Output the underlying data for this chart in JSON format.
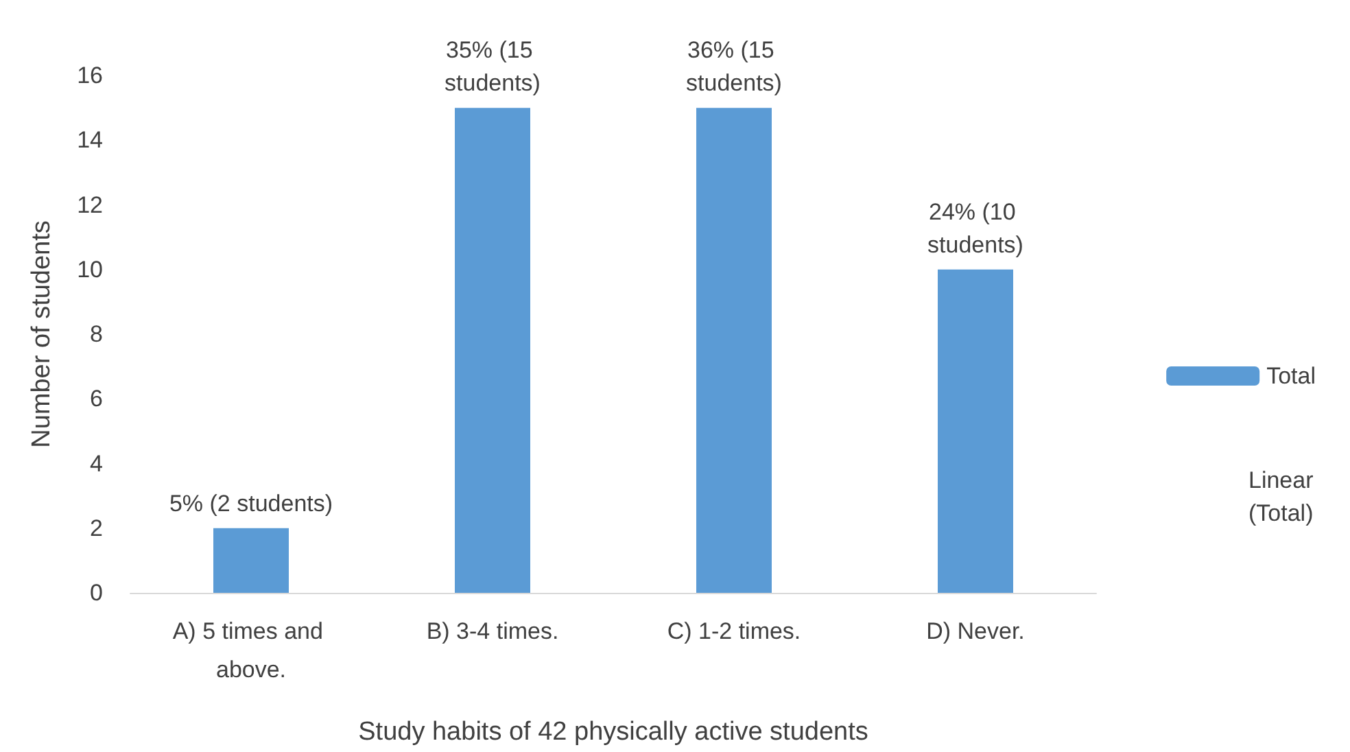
{
  "chart_data": {
    "type": "bar",
    "categories": [
      "A) 5 times and above.",
      "B) 3-4 times.",
      "C) 1-2 times.",
      "D) Never."
    ],
    "series": [
      {
        "name": "Total",
        "color": "#5b9bd5",
        "values": [
          2,
          15,
          15,
          10
        ],
        "value_labels": [
          "5% (2 students)",
          "35% (15 students)",
          "36% (15 students)",
          "24% (10 students)"
        ]
      }
    ],
    "xlabel": "Study habits of 42 physically active students",
    "ylabel": "Number of students",
    "ylim": [
      0,
      16
    ],
    "yticks": [
      0,
      2,
      4,
      6,
      8,
      10,
      12,
      14,
      16
    ],
    "grid": false,
    "legend": "right",
    "annotations": [
      "Linear (Total)"
    ]
  }
}
